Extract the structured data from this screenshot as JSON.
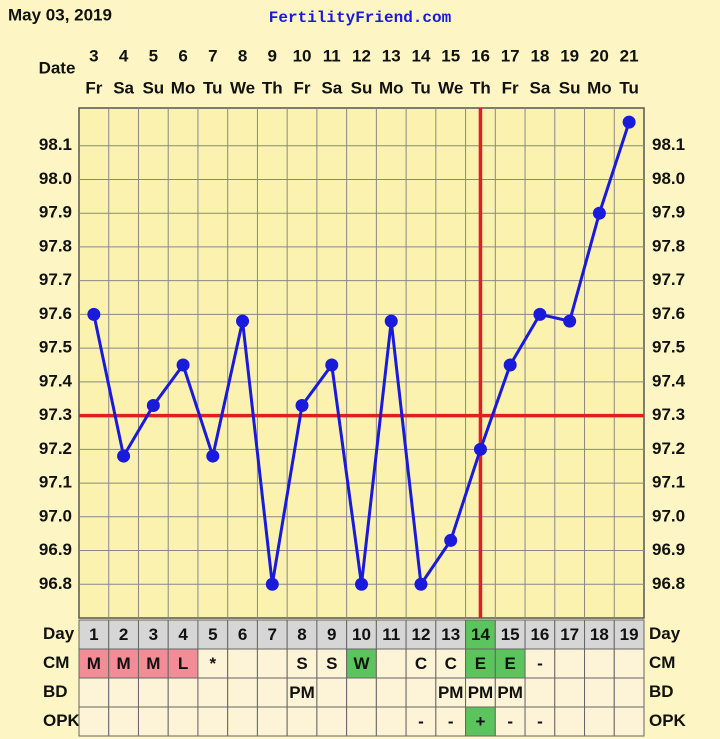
{
  "chart_data": {
    "type": "line",
    "title": "May 03, 2019",
    "brand": "FertilityFriend.com",
    "x_label": "Date",
    "categories": [
      "3",
      "4",
      "5",
      "6",
      "7",
      "8",
      "9",
      "10",
      "11",
      "12",
      "13",
      "14",
      "15",
      "16",
      "17",
      "18",
      "19",
      "20",
      "21"
    ],
    "weekdays": [
      "Fr",
      "Sa",
      "Su",
      "Mo",
      "Tu",
      "We",
      "Th",
      "Fr",
      "Sa",
      "Su",
      "Mo",
      "Tu",
      "We",
      "Th",
      "Fr",
      "Sa",
      "Su",
      "Mo",
      "Tu"
    ],
    "values": [
      97.6,
      97.18,
      97.33,
      97.45,
      97.18,
      97.58,
      96.8,
      97.33,
      97.45,
      96.8,
      97.58,
      96.8,
      96.93,
      97.2,
      97.45,
      97.6,
      97.58,
      97.9,
      98.17
    ],
    "color": "#1a1adb",
    "ylim": [
      96.7,
      98.2
    ],
    "yticks": [
      96.8,
      96.9,
      {
        "value": 97,
        "label": "97.0"
      },
      97.1,
      97.2,
      97.3,
      97.4,
      97.5,
      97.6,
      97.7,
      97.8,
      97.9,
      {
        "value": 98,
        "label": "98.0"
      },
      98.1
    ],
    "grid": true,
    "coverline": 97.3,
    "ovulation_date": "16",
    "marker_color": "#e02020"
  },
  "table": {
    "row_labels": [
      "Day",
      "CM",
      "BD",
      "OPK"
    ],
    "day": [
      1,
      2,
      3,
      4,
      5,
      6,
      7,
      8,
      9,
      10,
      11,
      12,
      13,
      14,
      15,
      16,
      17,
      18,
      19
    ],
    "cm": [
      "M",
      "M",
      "M",
      "L",
      "*",
      null,
      null,
      "S",
      "S",
      "W",
      null,
      "C",
      "C",
      "E",
      "E",
      "-",
      null,
      null,
      null
    ],
    "cm_colors": [
      "#f28c96",
      "#f28c96",
      "#f28c96",
      "#f28c96",
      null,
      null,
      null,
      null,
      null,
      "#5cc45c",
      null,
      null,
      null,
      "#5cc45c",
      "#5cc45c",
      null,
      null,
      null,
      null
    ],
    "bd": [
      null,
      null,
      null,
      null,
      null,
      null,
      null,
      "PM",
      null,
      null,
      null,
      null,
      "PM",
      "PM",
      "PM",
      null,
      null,
      null,
      null
    ],
    "opk": [
      null,
      null,
      null,
      null,
      null,
      null,
      null,
      null,
      null,
      null,
      null,
      "-",
      "-",
      "+",
      "-",
      "-",
      null,
      null,
      null
    ],
    "opk_colors": [
      null,
      null,
      null,
      null,
      null,
      null,
      null,
      null,
      null,
      null,
      null,
      null,
      null,
      "#5cc45c",
      null,
      null,
      null,
      null,
      null
    ],
    "day_colors": [
      null,
      null,
      null,
      null,
      null,
      null,
      null,
      null,
      null,
      null,
      null,
      null,
      null,
      "#5cc45c",
      null,
      null,
      null,
      null,
      null
    ]
  }
}
